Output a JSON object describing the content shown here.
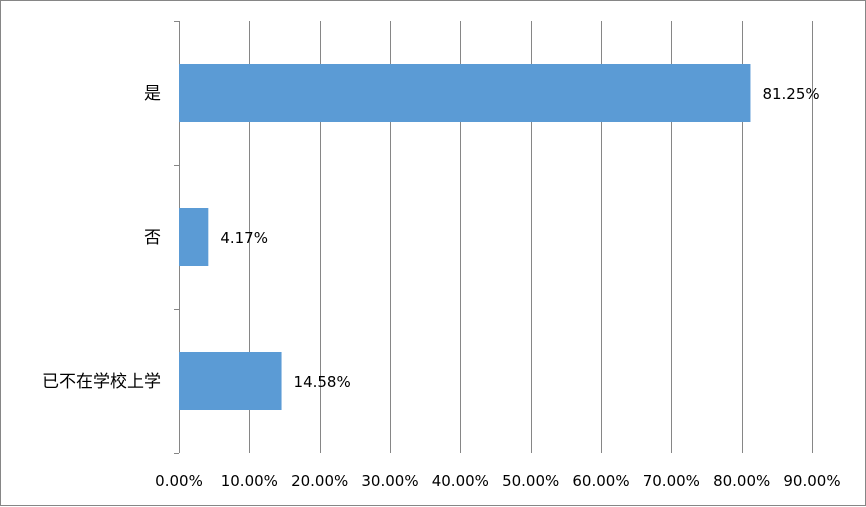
{
  "chart_data": {
    "type": "bar",
    "orientation": "horizontal",
    "categories": [
      "是",
      "否",
      "已不在学校上学"
    ],
    "values": [
      81.25,
      4.17,
      14.58
    ],
    "data_labels": [
      "81.25%",
      "4.17%",
      "14.58%"
    ],
    "xlim": [
      0,
      90
    ],
    "x_ticks": [
      0,
      10,
      20,
      30,
      40,
      50,
      60,
      70,
      80,
      90
    ],
    "x_tick_labels": [
      "0.00%",
      "10.00%",
      "20.00%",
      "30.00%",
      "40.00%",
      "50.00%",
      "60.00%",
      "70.00%",
      "80.00%",
      "90.00%"
    ],
    "grid": "vertical",
    "legend": "none",
    "bar_color": "#5B9BD5",
    "grid_color": "#868686"
  }
}
